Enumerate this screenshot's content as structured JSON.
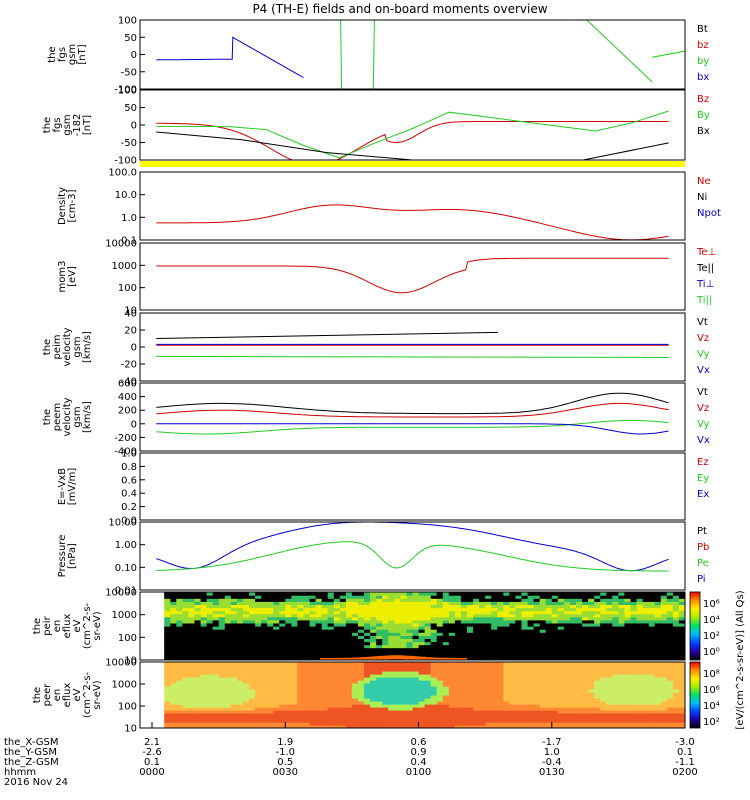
{
  "title": "P4 (TH-E) fields and on-board moments overview",
  "colors": {
    "black": "#000000",
    "red": "#d00000",
    "green": "#22cc22",
    "blue": "#0000cc",
    "yellow": "#ffff00"
  },
  "chart_data": [
    {
      "type": "line",
      "name": "fgs",
      "ylabel_lines": [
        "the",
        "fgs",
        "gsm",
        "[nT]"
      ],
      "ylim": [
        -100,
        100
      ],
      "yticks": [
        "100",
        "50",
        "0",
        "-50",
        "-100"
      ],
      "legend": [
        {
          "label": "Bt",
          "color": "#000000"
        },
        {
          "label": "bz",
          "color": "#d00000"
        },
        {
          "label": "by",
          "color": "#22cc22"
        },
        {
          "label": "bx",
          "color": "#0000cc"
        }
      ]
    },
    {
      "type": "line",
      "name": "fgs-gsm-182",
      "ylabel_lines": [
        "the",
        "fgs",
        "gsm",
        "-182",
        "[nT]"
      ],
      "ylim": [
        -100,
        100
      ],
      "yticks": [
        "100",
        "50",
        "0",
        "-50",
        "-100"
      ],
      "legend": [
        {
          "label": "Bz",
          "color": "#d00000"
        },
        {
          "label": "By",
          "color": "#22cc22"
        },
        {
          "label": "Bx",
          "color": "#000000"
        }
      ]
    },
    {
      "type": "line",
      "name": "density",
      "ylabel_lines": [
        "Density",
        "[cm-3]"
      ],
      "scale": "log",
      "yticks": [
        "100.0",
        "10.0",
        "1.0",
        "0.1"
      ],
      "legend": [
        {
          "label": "Ne",
          "color": "#d00000"
        },
        {
          "label": "Ni",
          "color": "#000000"
        },
        {
          "label": "Npot",
          "color": "#0000cc"
        }
      ]
    },
    {
      "type": "line",
      "name": "temperature",
      "ylabel_lines": [
        "mom3",
        "[eV]"
      ],
      "scale": "log",
      "yticks": [
        "10000",
        "1000",
        "100",
        "10"
      ],
      "legend": [
        {
          "label": "Te⊥",
          "color": "#d00000"
        },
        {
          "label": "Te||",
          "color": "#000000"
        },
        {
          "label": "Ti⊥",
          "color": "#0000cc"
        },
        {
          "label": "Ti||",
          "color": "#22cc22"
        }
      ]
    },
    {
      "type": "line",
      "name": "peim-velocity",
      "ylabel_lines": [
        "the",
        "peim",
        "velocity",
        "gsm",
        "[km/s]"
      ],
      "ylim": [
        -40,
        40
      ],
      "yticks": [
        "40",
        "20",
        "0",
        "-20",
        "-40"
      ],
      "legend": [
        {
          "label": "Vt",
          "color": "#000000"
        },
        {
          "label": "Vz",
          "color": "#d00000"
        },
        {
          "label": "Vy",
          "color": "#22cc22"
        },
        {
          "label": "Vx",
          "color": "#0000cc"
        }
      ]
    },
    {
      "type": "line",
      "name": "peem-velocity",
      "ylabel_lines": [
        "the",
        "peem",
        "velocity",
        "gsm",
        "[km/s]"
      ],
      "ylim": [
        -400,
        600
      ],
      "yticks": [
        "600",
        "400",
        "200",
        "0",
        "-200",
        "-400"
      ],
      "legend": [
        {
          "label": "Vt",
          "color": "#000000"
        },
        {
          "label": "Vz",
          "color": "#d00000"
        },
        {
          "label": "Vy",
          "color": "#22cc22"
        },
        {
          "label": "Vx",
          "color": "#0000cc"
        }
      ]
    },
    {
      "type": "line",
      "name": "efield",
      "ylabel_lines": [
        "E=-VxB",
        "[mV/m]"
      ],
      "ylim": [
        0,
        1
      ],
      "yticks": [
        "1.0",
        "0.8",
        "0.6",
        "0.4",
        "0.2",
        "0.0"
      ],
      "legend": [
        {
          "label": "Ez",
          "color": "#d00000"
        },
        {
          "label": "Ey",
          "color": "#22cc22"
        },
        {
          "label": "Ex",
          "color": "#0000cc"
        }
      ]
    },
    {
      "type": "line",
      "name": "pressure",
      "ylabel_lines": [
        "Pressure",
        "[nPa]"
      ],
      "scale": "log",
      "yticks": [
        "10.00",
        "1.00",
        "0.10",
        "0.01"
      ],
      "legend": [
        {
          "label": "Pt",
          "color": "#000000"
        },
        {
          "label": "Pb",
          "color": "#d00000"
        },
        {
          "label": "Pe",
          "color": "#22cc22"
        },
        {
          "label": "Pi",
          "color": "#0000cc"
        }
      ]
    },
    {
      "type": "heatmap",
      "name": "peir-spectrogram",
      "ylabel_lines": [
        "the",
        "peir",
        "en",
        "eflux",
        "eV",
        "(cm^2-s-",
        "sr-eV)"
      ],
      "scale": "log",
      "yticks": [
        "10000",
        "1000",
        "100",
        "10"
      ]
    },
    {
      "type": "heatmap",
      "name": "peer-spectrogram",
      "ylabel_lines": [
        "the",
        "peer",
        "en",
        "eflux",
        "eV",
        "(cm^2-s-",
        "sr-eV)"
      ],
      "scale": "log",
      "yticks": [
        "10000",
        "1000",
        "100",
        "10"
      ]
    }
  ],
  "colorbar": {
    "ticks": [
      "10⁶",
      "10⁴",
      "10²",
      "10⁰",
      "10⁸",
      "10⁶",
      "10⁴",
      "10²"
    ],
    "label": "[eV/(cm^2-s-sr-eV)] (All Qs)"
  },
  "ephemeris": {
    "labels": [
      "the_X-GSM",
      "the_Y-GSM",
      "the_Z-GSM",
      "hhmm",
      "2016 Nov 24"
    ],
    "columns": [
      [
        "2.1",
        "-2.6",
        "0.1",
        "0000"
      ],
      [
        "1.9",
        "-1.0",
        "0.5",
        "0030"
      ],
      [
        "0.6",
        "0.9",
        "0.4",
        "0100"
      ],
      [
        "-1.7",
        "1.0",
        "-0.4",
        "0130"
      ],
      [
        "-3.0",
        "0.1",
        "-1.1",
        "0200"
      ]
    ]
  }
}
